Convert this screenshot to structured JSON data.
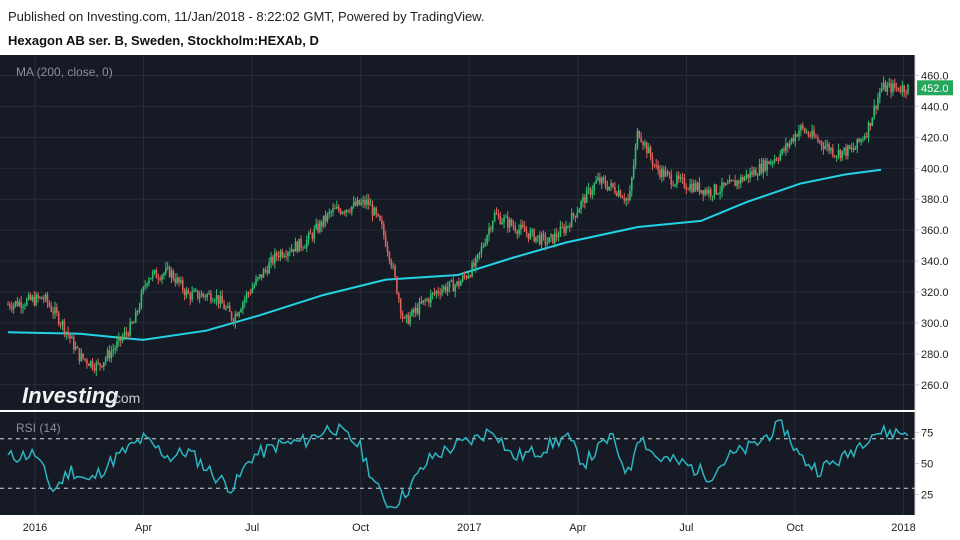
{
  "header": {
    "published": "Published on Investing.com, 11/Jan/2018 - 8:22:02 GMT, Powered by TradingView.",
    "symbol": "Hexagon AB ser. B, Sweden, Stockholm:HEXAb, D"
  },
  "watermark": {
    "brand": "Investing",
    "suffix": ".com"
  },
  "colors": {
    "background": "#161a25",
    "up": "#2fbf71",
    "down": "#e0605a",
    "ma": "#22d3e6",
    "rsi": "#2bb5c0",
    "badge": "#26a65b"
  },
  "chart_data": [
    {
      "type": "candlestick",
      "indicator_label": "MA (200, close, 0)",
      "ylim": [
        245,
        470
      ],
      "y_ticks": [
        260,
        280,
        300,
        320,
        340,
        360,
        380,
        400,
        420,
        440,
        460
      ],
      "last_price": "452.0",
      "x_ticks": [
        "2016",
        "Apr",
        "Jul",
        "Oct",
        "2017",
        "Apr",
        "Jul",
        "Oct",
        "2018"
      ],
      "price_path": [
        [
          0,
          312
        ],
        [
          0.04,
          316
        ],
        [
          0.06,
          300
        ],
        [
          0.08,
          278
        ],
        [
          0.1,
          272
        ],
        [
          0.12,
          285
        ],
        [
          0.14,
          300
        ],
        [
          0.155,
          330
        ],
        [
          0.18,
          333
        ],
        [
          0.2,
          318
        ],
        [
          0.23,
          318
        ],
        [
          0.25,
          303
        ],
        [
          0.265,
          318
        ],
        [
          0.3,
          345
        ],
        [
          0.33,
          352
        ],
        [
          0.36,
          372
        ],
        [
          0.4,
          378
        ],
        [
          0.415,
          362
        ],
        [
          0.425,
          342
        ],
        [
          0.44,
          300
        ],
        [
          0.46,
          312
        ],
        [
          0.48,
          322
        ],
        [
          0.5,
          325
        ],
        [
          0.52,
          338
        ],
        [
          0.54,
          370
        ],
        [
          0.57,
          360
        ],
        [
          0.6,
          352
        ],
        [
          0.62,
          362
        ],
        [
          0.64,
          380
        ],
        [
          0.655,
          392
        ],
        [
          0.68,
          385
        ],
        [
          0.69,
          378
        ],
        [
          0.7,
          425
        ],
        [
          0.72,
          400
        ],
        [
          0.74,
          392
        ],
        [
          0.78,
          385
        ],
        [
          0.8,
          388
        ],
        [
          0.83,
          398
        ],
        [
          0.86,
          410
        ],
        [
          0.88,
          426
        ],
        [
          0.9,
          418
        ],
        [
          0.92,
          410
        ],
        [
          0.94,
          412
        ],
        [
          0.955,
          425
        ],
        [
          0.97,
          452
        ]
      ],
      "ma200": [
        [
          0,
          294
        ],
        [
          0.08,
          293
        ],
        [
          0.15,
          289
        ],
        [
          0.22,
          295
        ],
        [
          0.28,
          305
        ],
        [
          0.35,
          318
        ],
        [
          0.42,
          328
        ],
        [
          0.5,
          331
        ],
        [
          0.56,
          342
        ],
        [
          0.62,
          352
        ],
        [
          0.7,
          362
        ],
        [
          0.77,
          366
        ],
        [
          0.82,
          378
        ],
        [
          0.88,
          390
        ],
        [
          0.93,
          396
        ],
        [
          0.97,
          399
        ]
      ]
    },
    {
      "type": "line",
      "indicator_label": "RSI (14)",
      "ylim": [
        10,
        90
      ],
      "y_ticks": [
        25,
        50,
        75
      ],
      "bands": [
        30,
        70
      ],
      "rsi_path": [
        [
          0,
          55
        ],
        [
          0.03,
          58
        ],
        [
          0.05,
          28
        ],
        [
          0.07,
          45
        ],
        [
          0.09,
          35
        ],
        [
          0.12,
          55
        ],
        [
          0.15,
          70
        ],
        [
          0.18,
          55
        ],
        [
          0.2,
          60
        ],
        [
          0.23,
          40
        ],
        [
          0.25,
          30
        ],
        [
          0.27,
          55
        ],
        [
          0.3,
          65
        ],
        [
          0.33,
          68
        ],
        [
          0.36,
          80
        ],
        [
          0.39,
          65
        ],
        [
          0.41,
          30
        ],
        [
          0.425,
          15
        ],
        [
          0.44,
          25
        ],
        [
          0.47,
          55
        ],
        [
          0.5,
          65
        ],
        [
          0.52,
          70
        ],
        [
          0.54,
          78
        ],
        [
          0.56,
          55
        ],
        [
          0.59,
          60
        ],
        [
          0.62,
          72
        ],
        [
          0.64,
          50
        ],
        [
          0.67,
          72
        ],
        [
          0.69,
          40
        ],
        [
          0.7,
          75
        ],
        [
          0.72,
          55
        ],
        [
          0.75,
          50
        ],
        [
          0.78,
          40
        ],
        [
          0.8,
          55
        ],
        [
          0.83,
          65
        ],
        [
          0.86,
          82
        ],
        [
          0.88,
          55
        ],
        [
          0.9,
          45
        ],
        [
          0.93,
          55
        ],
        [
          0.96,
          75
        ]
      ]
    }
  ]
}
